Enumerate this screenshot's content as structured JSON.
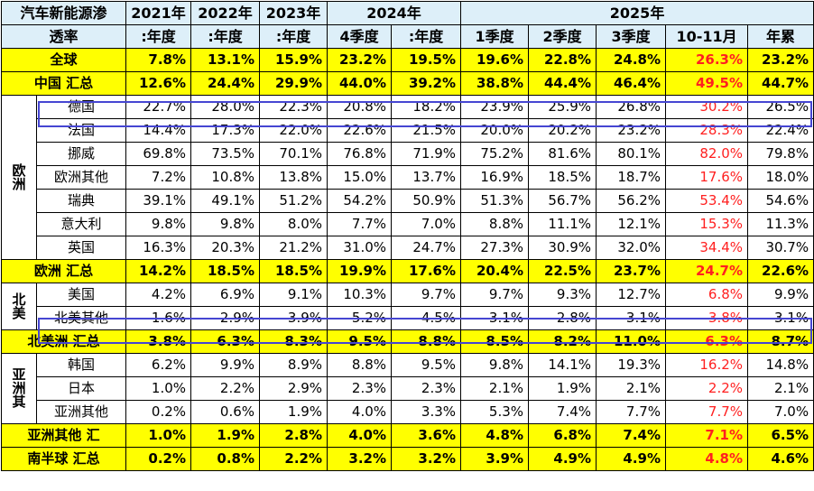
{
  "header": {
    "title_line1": "汽车新能源渗",
    "title_line2": "透率",
    "year_2021": "2021年",
    "year_2022": "2022年",
    "year_2023": "2023年",
    "year_2024": "2024年",
    "year_2025": "2025年",
    "periods": [
      ":年度",
      ":年度",
      ":年度",
      "4季度",
      ":年度",
      "1季度",
      "2季度",
      "3季度",
      "10-11月",
      "年累"
    ]
  },
  "rows": {
    "global": {
      "label": "全球",
      "values": [
        "7.8%",
        "13.1%",
        "15.9%",
        "23.2%",
        "19.5%",
        "19.6%",
        "22.8%",
        "24.8%",
        "26.3%",
        "23.2%"
      ]
    },
    "china": {
      "label": "中国 汇总",
      "values": [
        "12.6%",
        "24.4%",
        "29.9%",
        "44.0%",
        "39.2%",
        "38.8%",
        "44.4%",
        "46.4%",
        "49.5%",
        "44.7%"
      ]
    },
    "europe_countries": [
      {
        "label": "德国",
        "values": [
          "22.7%",
          "28.0%",
          "22.3%",
          "20.8%",
          "18.2%",
          "23.9%",
          "25.9%",
          "26.8%",
          "30.2%",
          "26.5%"
        ]
      },
      {
        "label": "法国",
        "values": [
          "14.4%",
          "17.3%",
          "22.0%",
          "22.6%",
          "21.5%",
          "20.0%",
          "20.2%",
          "23.2%",
          "28.3%",
          "22.4%"
        ]
      },
      {
        "label": "挪威",
        "values": [
          "69.8%",
          "73.5%",
          "70.1%",
          "76.8%",
          "71.9%",
          "75.2%",
          "81.6%",
          "80.1%",
          "82.0%",
          "79.8%"
        ]
      },
      {
        "label": "欧洲其他",
        "values": [
          "7.2%",
          "10.8%",
          "13.8%",
          "15.0%",
          "13.7%",
          "16.9%",
          "18.5%",
          "18.7%",
          "17.6%",
          "18.0%"
        ]
      },
      {
        "label": "瑞典",
        "values": [
          "39.1%",
          "49.1%",
          "51.2%",
          "54.2%",
          "50.9%",
          "51.3%",
          "56.7%",
          "56.2%",
          "53.4%",
          "54.6%"
        ]
      },
      {
        "label": "意大利",
        "values": [
          "9.8%",
          "9.8%",
          "8.0%",
          "7.7%",
          "7.0%",
          "8.8%",
          "11.1%",
          "12.1%",
          "15.3%",
          "11.3%"
        ]
      },
      {
        "label": "英国",
        "values": [
          "16.3%",
          "20.3%",
          "21.2%",
          "31.0%",
          "24.7%",
          "27.3%",
          "30.9%",
          "32.0%",
          "34.4%",
          "30.7%"
        ]
      }
    ],
    "europe_total": {
      "label": "欧洲 汇总",
      "values": [
        "14.2%",
        "18.5%",
        "18.5%",
        "19.9%",
        "17.6%",
        "20.4%",
        "22.5%",
        "23.7%",
        "24.7%",
        "22.6%"
      ]
    },
    "na_countries": [
      {
        "label": "美国",
        "values": [
          "4.2%",
          "6.9%",
          "9.1%",
          "10.3%",
          "9.7%",
          "9.7%",
          "9.3%",
          "12.7%",
          "6.8%",
          "9.9%"
        ]
      },
      {
        "label": "北美其他",
        "values": [
          "1.6%",
          "2.9%",
          "3.9%",
          "5.2%",
          "4.5%",
          "3.1%",
          "2.8%",
          "3.1%",
          "3.8%",
          "3.1%"
        ]
      }
    ],
    "na_total": {
      "label": "北美洲 汇总",
      "values": [
        "3.8%",
        "6.3%",
        "8.3%",
        "9.5%",
        "8.8%",
        "8.5%",
        "8.2%",
        "11.0%",
        "6.3%",
        "8.7%"
      ]
    },
    "asia_countries": [
      {
        "label": "韩国",
        "values": [
          "6.2%",
          "9.9%",
          "8.9%",
          "8.8%",
          "9.5%",
          "9.8%",
          "14.1%",
          "19.3%",
          "16.2%",
          "14.8%"
        ]
      },
      {
        "label": "日本",
        "values": [
          "1.0%",
          "2.2%",
          "2.9%",
          "2.3%",
          "2.3%",
          "2.1%",
          "1.9%",
          "2.1%",
          "2.2%",
          "2.1%"
        ]
      },
      {
        "label": "亚洲其他",
        "values": [
          "0.2%",
          "0.6%",
          "1.9%",
          "4.0%",
          "3.3%",
          "5.3%",
          "7.4%",
          "7.7%",
          "7.7%",
          "7.0%"
        ]
      }
    ],
    "asia_total": {
      "label": "亚洲其他 汇",
      "values": [
        "1.0%",
        "1.9%",
        "2.8%",
        "4.0%",
        "3.6%",
        "4.8%",
        "6.8%",
        "7.4%",
        "7.1%",
        "6.5%"
      ]
    },
    "south": {
      "label": "南半球 汇总",
      "values": [
        "0.2%",
        "0.8%",
        "2.2%",
        "3.2%",
        "3.2%",
        "3.9%",
        "4.9%",
        "4.9%",
        "4.8%",
        "4.6%"
      ]
    }
  },
  "region_labels": {
    "europe": [
      "欧",
      "洲"
    ],
    "north_america": [
      "北",
      "美"
    ],
    "asia": [
      "亚",
      "洲",
      "其"
    ]
  },
  "colors": {
    "header_bg": "#ddeff9",
    "highlight_bg": "#ffff00",
    "red_text": "#ff2020",
    "box_border": "#4646d2"
  }
}
